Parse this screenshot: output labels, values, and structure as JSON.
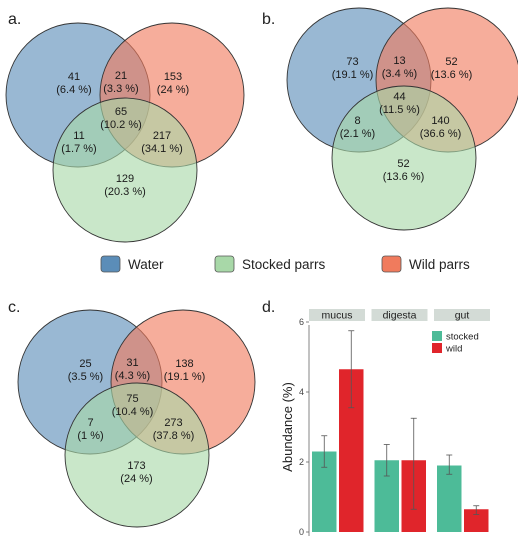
{
  "colors": {
    "water": "#5b8db8",
    "stocked": "#a8d8a8",
    "wild": "#f07b5d",
    "bar_stocked": "#4dbb98",
    "bar_wild": "#e0252b",
    "strip": "#d3dbd6"
  },
  "panels": {
    "a": {
      "label": "a.",
      "regions": {
        "water_only": [
          "41",
          "(6.4 %)"
        ],
        "water_wild": [
          "21",
          "(3.3 %)"
        ],
        "wild_only": [
          "153",
          "(24 %)"
        ],
        "all": [
          "65",
          "(10.2 %)"
        ],
        "water_stocked": [
          "11",
          "(1.7 %)"
        ],
        "stocked_wild": [
          "217",
          "(34.1 %)"
        ],
        "stocked_only": [
          "129",
          "(20.3 %)"
        ]
      }
    },
    "b": {
      "label": "b.",
      "regions": {
        "water_only": [
          "73",
          "(19.1 %)"
        ],
        "water_wild": [
          "13",
          "(3.4 %)"
        ],
        "wild_only": [
          "52",
          "(13.6 %)"
        ],
        "all": [
          "44",
          "(11.5 %)"
        ],
        "water_stocked": [
          "8",
          "(2.1 %)"
        ],
        "stocked_wild": [
          "140",
          "(36.6 %)"
        ],
        "stocked_only": [
          "52",
          "(13.6 %)"
        ]
      }
    },
    "c": {
      "label": "c.",
      "regions": {
        "water_only": [
          "25",
          "(3.5 %)"
        ],
        "water_wild": [
          "31",
          "(4.3 %)"
        ],
        "wild_only": [
          "138",
          "(19.1 %)"
        ],
        "all": [
          "75",
          "(10.4 %)"
        ],
        "water_stocked": [
          "7",
          "(1 %)"
        ],
        "stocked_wild": [
          "273",
          "(37.8 %)"
        ],
        "stocked_only": [
          "173",
          "(24 %)"
        ]
      }
    },
    "d": {
      "label": "d."
    }
  },
  "legend": {
    "water": "Water",
    "stocked": "Stocked parrs",
    "wild": "Wild parrs"
  },
  "chart_data": {
    "type": "bar",
    "facets": [
      "mucus",
      "digesta",
      "gut"
    ],
    "ylabel": "Abundance (%)",
    "ylim": [
      0,
      6
    ],
    "yticks": [
      0,
      2,
      4,
      6
    ],
    "legend_position": "top-right",
    "series": [
      {
        "name": "stocked",
        "values": [
          2.3,
          2.05,
          1.9
        ],
        "err_low": [
          1.85,
          1.6,
          1.65
        ],
        "err_high": [
          2.75,
          2.5,
          2.2
        ]
      },
      {
        "name": "wild",
        "values": [
          4.65,
          2.05,
          0.65
        ],
        "err_low": [
          3.55,
          0.65,
          0.5
        ],
        "err_high": [
          5.75,
          3.25,
          0.75
        ]
      }
    ]
  }
}
